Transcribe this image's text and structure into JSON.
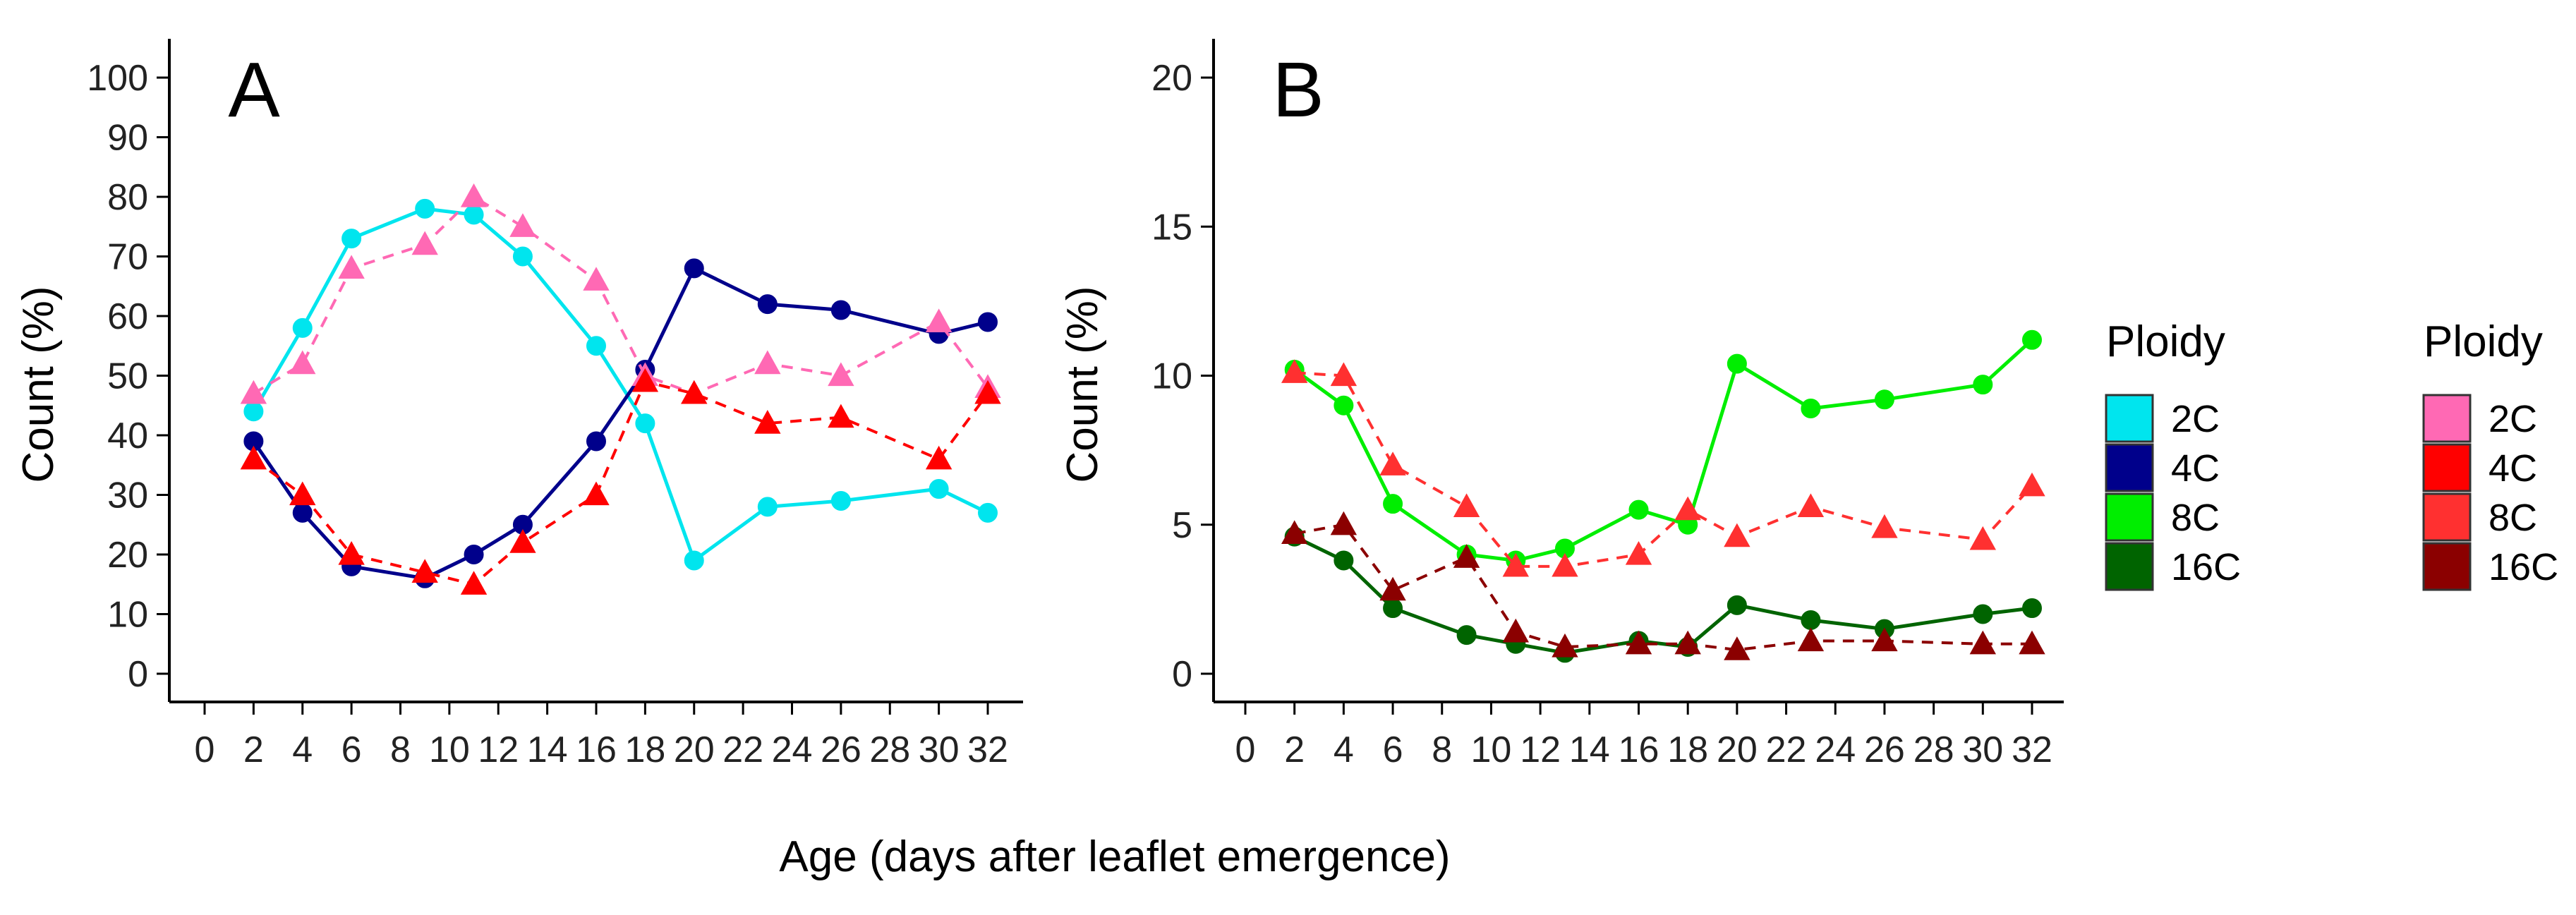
{
  "chart_data": [
    {
      "type": "line",
      "panel": "A",
      "title": "A",
      "ylabel": "Count (%)",
      "xlabel": "",
      "xlim": [
        0,
        32
      ],
      "ylim": [
        0,
        100
      ],
      "xticks": [
        "0",
        "2",
        "4",
        "6",
        "8",
        "10",
        "12",
        "14",
        "16",
        "18",
        "20",
        "22",
        "24",
        "26",
        "28",
        "30",
        "32"
      ],
      "yticks": [
        "0",
        "10",
        "20",
        "30",
        "40",
        "50",
        "60",
        "70",
        "80",
        "90",
        "100"
      ],
      "x": [
        2,
        4,
        6,
        9,
        11,
        13,
        16,
        18,
        20,
        23,
        26,
        30,
        32
      ],
      "series": [
        {
          "name": "2C",
          "group": "solid",
          "color": "#00e5ee",
          "values": [
            44,
            58,
            73,
            78,
            77,
            70,
            55,
            42,
            19,
            28,
            29,
            31,
            27
          ]
        },
        {
          "name": "4C",
          "group": "solid",
          "color": "#00008b",
          "values": [
            39,
            27,
            18,
            16,
            20,
            25,
            39,
            51,
            68,
            62,
            61,
            57,
            59
          ]
        },
        {
          "name": "2C",
          "group": "dashed",
          "color": "#ff69b4",
          "values": [
            47,
            52,
            68,
            72,
            80,
            75,
            66,
            50,
            47,
            52,
            50,
            59,
            48
          ]
        },
        {
          "name": "4C",
          "group": "dashed",
          "color": "#ff0000",
          "values": [
            36,
            30,
            20,
            17,
            15,
            22,
            30,
            49,
            47,
            42,
            43,
            36,
            47
          ]
        }
      ]
    },
    {
      "type": "line",
      "panel": "B",
      "title": "B",
      "ylabel": "Count (%)",
      "xlabel": "",
      "xlim": [
        0,
        32
      ],
      "ylim": [
        0,
        20
      ],
      "xticks": [
        "0",
        "2",
        "4",
        "6",
        "8",
        "10",
        "12",
        "14",
        "16",
        "18",
        "20",
        "22",
        "24",
        "26",
        "28",
        "30",
        "32"
      ],
      "yticks": [
        "0",
        "5",
        "10",
        "15",
        "20"
      ],
      "x": [
        2,
        4,
        6,
        9,
        11,
        13,
        16,
        18,
        20,
        23,
        26,
        30,
        32
      ],
      "series": [
        {
          "name": "8C",
          "group": "solid",
          "color": "#00ee00",
          "values": [
            10.2,
            9.0,
            5.7,
            4.0,
            3.8,
            4.2,
            5.5,
            5.0,
            10.4,
            8.9,
            9.2,
            9.7,
            11.2
          ]
        },
        {
          "name": "16C",
          "group": "solid",
          "color": "#006400",
          "values": [
            4.6,
            3.8,
            2.2,
            1.3,
            1.0,
            0.7,
            1.1,
            0.9,
            2.3,
            1.8,
            1.5,
            2.0,
            2.2
          ]
        },
        {
          "name": "8C",
          "group": "dashed",
          "color": "#ff3030",
          "values": [
            10.1,
            10.0,
            7.0,
            5.6,
            3.6,
            3.6,
            4.0,
            5.5,
            4.6,
            5.6,
            4.9,
            4.5,
            6.3
          ]
        },
        {
          "name": "16C",
          "group": "dashed",
          "color": "#8b0000",
          "values": [
            4.7,
            5.0,
            2.8,
            3.9,
            1.4,
            0.9,
            1.0,
            1.0,
            0.8,
            1.1,
            1.1,
            1.0,
            1.0
          ]
        }
      ]
    }
  ],
  "shared_xlabel": "Age (days after leaflet emergence)",
  "legends": [
    {
      "title": "Ploidy",
      "entries": [
        {
          "label": "2C",
          "color": "#00e5ee"
        },
        {
          "label": "4C",
          "color": "#00008b"
        },
        {
          "label": "8C",
          "color": "#00ee00"
        },
        {
          "label": "16C",
          "color": "#006400"
        }
      ]
    },
    {
      "title": "Ploidy",
      "entries": [
        {
          "label": "2C",
          "color": "#ff69b4"
        },
        {
          "label": "4C",
          "color": "#ff0000"
        },
        {
          "label": "8C",
          "color": "#ff3030"
        },
        {
          "label": "16C",
          "color": "#8b0000"
        }
      ]
    }
  ]
}
